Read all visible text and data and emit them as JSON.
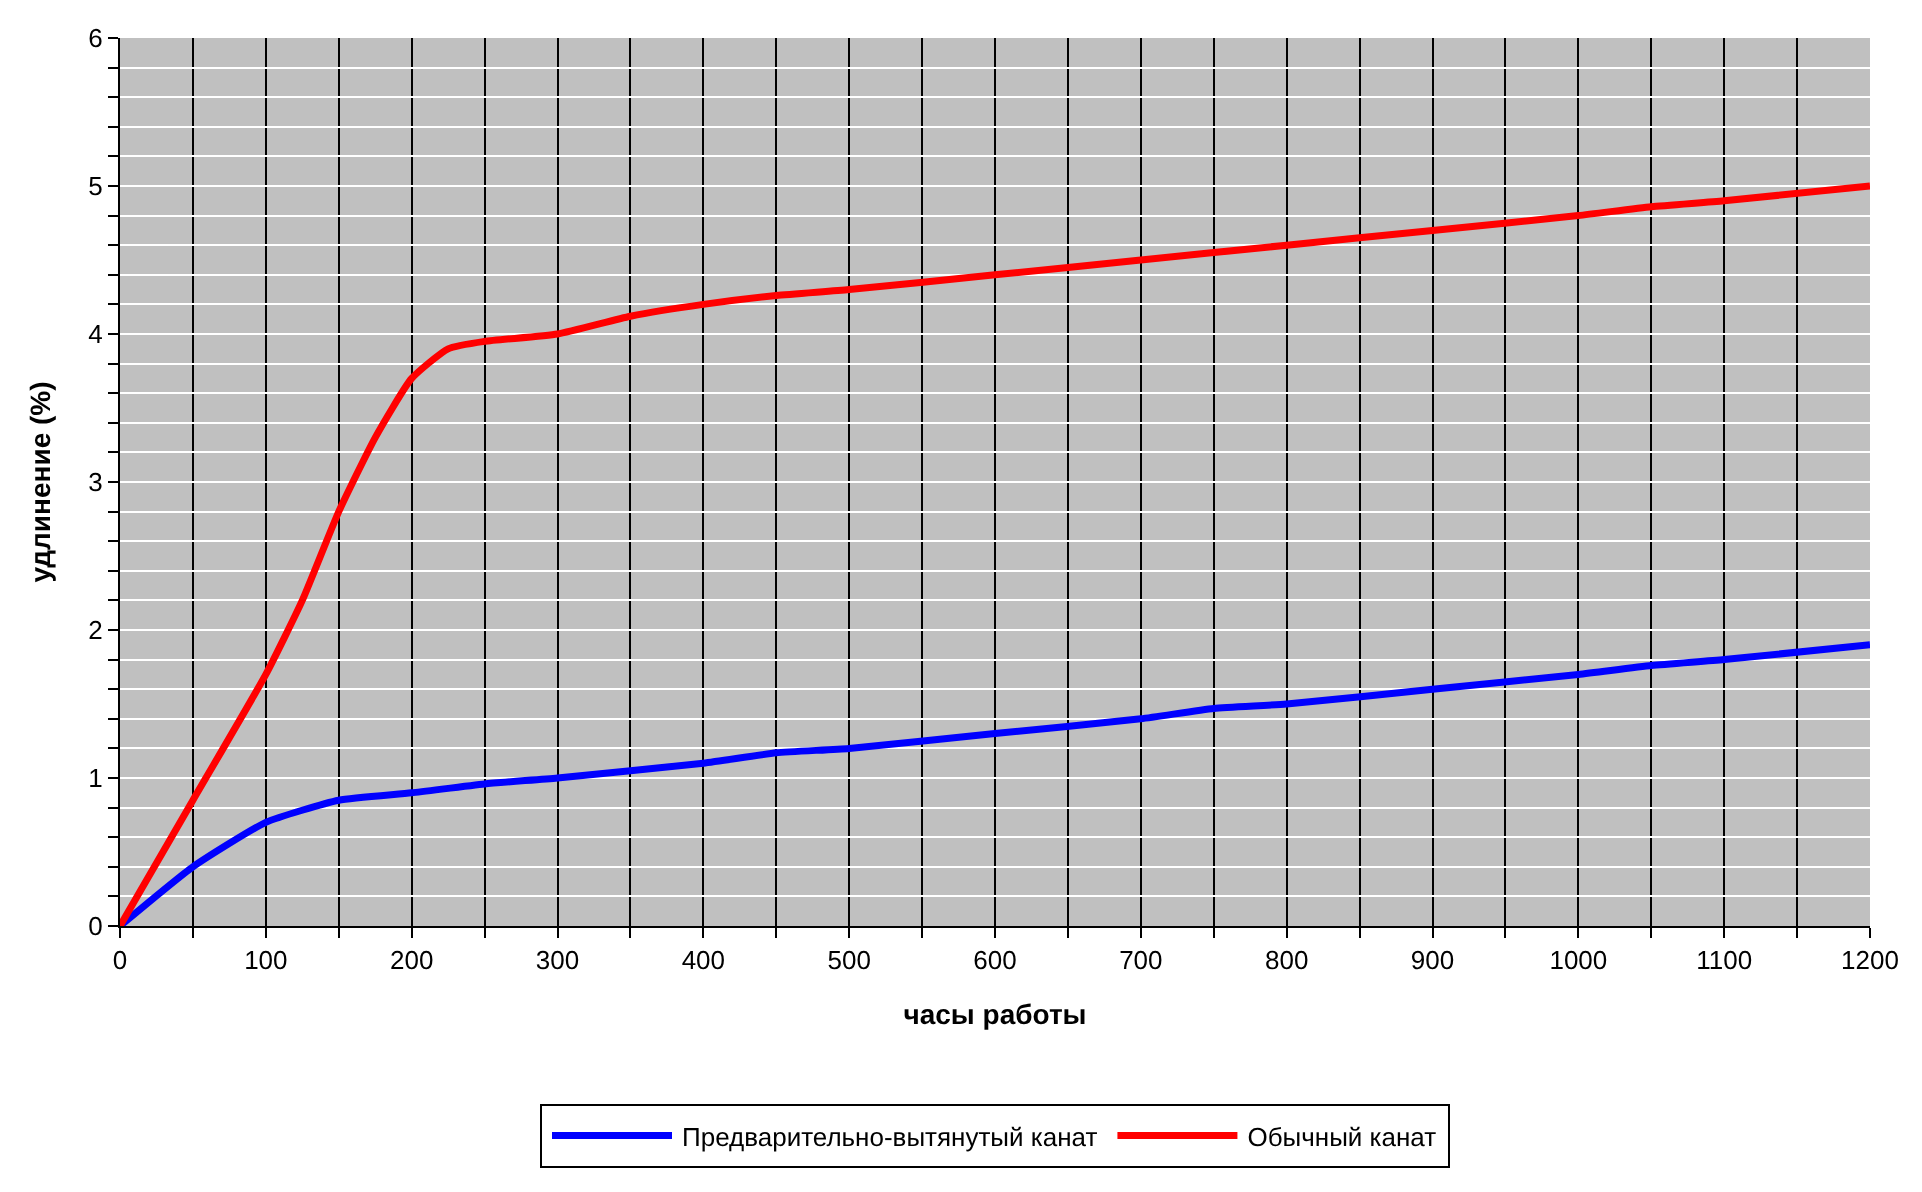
{
  "chart_data": {
    "type": "line",
    "xlabel": "часы работы",
    "ylabel": "удлинение (%)",
    "xlim": [
      0,
      1200
    ],
    "ylim": [
      0,
      6
    ],
    "xticks": [
      0,
      {
        "value": 50,
        "label": null
      },
      100,
      {
        "value": 150,
        "label": null
      },
      200,
      {
        "value": 250,
        "label": null
      },
      300,
      {
        "value": 350,
        "label": null
      },
      400,
      {
        "value": 450,
        "label": null
      },
      500,
      {
        "value": 550,
        "label": null
      },
      600,
      {
        "value": 650,
        "label": null
      },
      700,
      {
        "value": 750,
        "label": null
      },
      800,
      {
        "value": 850,
        "label": null
      },
      900,
      {
        "value": 950,
        "label": null
      },
      1000,
      {
        "value": 1050,
        "label": null
      },
      1100,
      {
        "value": 1150,
        "label": null
      },
      1200
    ],
    "yticks": [
      0,
      {
        "value": 0.2,
        "label": null
      },
      {
        "value": 0.4,
        "label": null
      },
      {
        "value": 0.6,
        "label": null
      },
      {
        "value": 0.8,
        "label": null
      },
      1,
      {
        "value": 1.2,
        "label": null
      },
      {
        "value": 1.4,
        "label": null
      },
      {
        "value": 1.6,
        "label": null
      },
      {
        "value": 1.8,
        "label": null
      },
      2,
      {
        "value": 2.2,
        "label": null
      },
      {
        "value": 2.4,
        "label": null
      },
      {
        "value": 2.6,
        "label": null
      },
      {
        "value": 2.8,
        "label": null
      },
      3,
      {
        "value": 3.2,
        "label": null
      },
      {
        "value": 3.4,
        "label": null
      },
      {
        "value": 3.6,
        "label": null
      },
      {
        "value": 3.8,
        "label": null
      },
      4,
      {
        "value": 4.2,
        "label": null
      },
      {
        "value": 4.4,
        "label": null
      },
      {
        "value": 4.6,
        "label": null
      },
      {
        "value": 4.8,
        "label": null
      },
      5,
      {
        "value": 5.2,
        "label": null
      },
      {
        "value": 5.4,
        "label": null
      },
      {
        "value": 5.6,
        "label": null
      },
      {
        "value": 5.8,
        "label": null
      },
      6
    ],
    "grid": true,
    "legend": "bottom",
    "marker": "none",
    "line_style": "solid",
    "series": [
      {
        "name": "Предварительно-вытянутый канат",
        "color": "#0000ff",
        "x": [
          0,
          50,
          100,
          150,
          200,
          250,
          300,
          400,
          450,
          500,
          600,
          700,
          750,
          800,
          900,
          1000,
          1050,
          1100,
          1200
        ],
        "values": [
          0,
          0.4,
          0.7,
          0.85,
          0.9,
          0.96,
          1.0,
          1.1,
          1.17,
          1.2,
          1.3,
          1.4,
          1.47,
          1.5,
          1.6,
          1.7,
          1.76,
          1.8,
          1.9
        ]
      },
      {
        "name": "Обычный канат",
        "color": "#ff0000",
        "x": [
          0,
          50,
          100,
          125,
          150,
          175,
          200,
          225,
          250,
          300,
          350,
          400,
          450,
          500,
          600,
          700,
          800,
          900,
          1000,
          1050,
          1100,
          1200
        ],
        "values": [
          0,
          0.85,
          1.7,
          2.2,
          2.8,
          3.3,
          3.7,
          3.9,
          3.95,
          4.0,
          4.12,
          4.2,
          4.26,
          4.3,
          4.4,
          4.5,
          4.6,
          4.7,
          4.8,
          4.86,
          4.9,
          5.0
        ]
      }
    ]
  }
}
